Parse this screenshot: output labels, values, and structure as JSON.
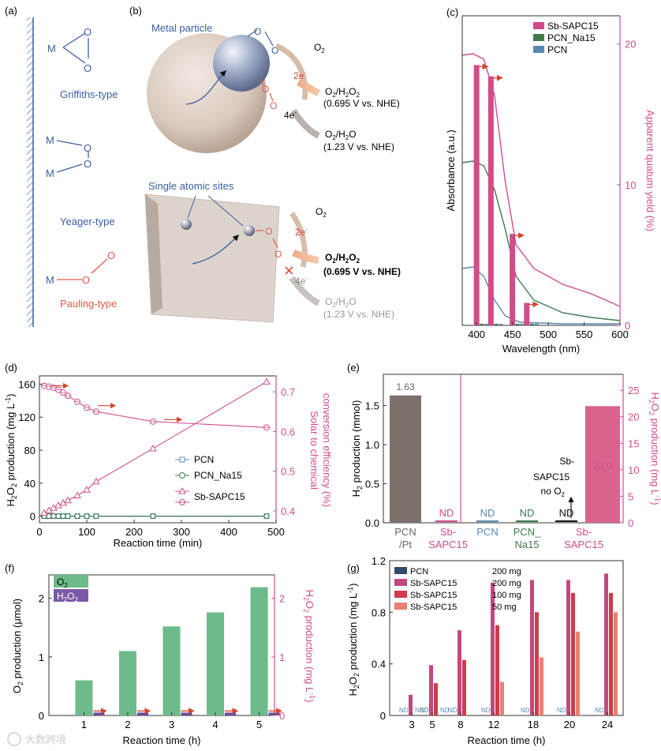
{
  "panel_labels": {
    "a": "(a)",
    "b": "(b)",
    "c": "(c)",
    "d": "(d)",
    "e": "(e)",
    "f": "(f)",
    "g": "(g)"
  },
  "panel_a": {
    "m_label": "M",
    "o_label": "O",
    "types": [
      "Griffiths-type",
      "Yeager-type",
      "Pauling-type"
    ]
  },
  "panel_b": {
    "metal_particle": "Metal particle",
    "single_sites": "Single atomic sites",
    "o2": "O",
    "two_e": "2e",
    "four_e": "4e",
    "o2h2o2": "O/HO",
    "v1": "(0.695 V vs. NHE)",
    "o2h2o": "O/HO",
    "v2": "(1.23 V vs. NHE)"
  },
  "panel_c": {
    "ylabel_left": "Absorbance (a.u.)",
    "ylabel_right": "Apparent quatum yield (%)",
    "xlabel": "Wavelength (nm)",
    "x_ticks": [
      "400",
      "450",
      "500",
      "550",
      "600"
    ],
    "y_right_ticks": [
      "0",
      "10",
      "20"
    ],
    "legend": [
      "Sb-SAPC15",
      "PCN_Na15",
      "PCN"
    ],
    "colors": [
      "#d14d8a",
      "#3f7a4d",
      "#5a87b0"
    ]
  },
  "panel_d": {
    "ylabel_left": "HO production (mg L)",
    "ylabel_right_1": "Solar to chemical",
    "ylabel_right_2": "conversion efficiency (%)",
    "xlabel": "Reaction time (min)",
    "x_ticks": [
      "0",
      "100",
      "200",
      "300",
      "400",
      "500"
    ],
    "y_left_ticks": [
      "0",
      "40",
      "80",
      "120",
      "160"
    ],
    "y_right_ticks": [
      "0.4",
      "0.5",
      "0.6",
      "0.7"
    ],
    "legend": [
      "PCN",
      "PCN_Na15",
      "Sb-SAPC15"
    ]
  },
  "panel_e": {
    "ylabel_left": "H production (mmol)",
    "ylabel_right": "HO production (mg L)",
    "y_left_ticks": [
      "0.0",
      "0.5",
      "1.0",
      "1.5"
    ],
    "y_right_ticks": [
      "0",
      "5",
      "10",
      "15",
      "20",
      "25"
    ],
    "value_1": "1.63",
    "value_2": "22.0",
    "nd": "ND",
    "note_1": "Sb-",
    "note_2": "SAPC15",
    "note_3": "no O",
    "categories": [
      "PCN\n/Pt",
      "Sb-\nSAPC15",
      "PCN",
      "PCN_\nNa15",
      "Sb-\nSAPC15"
    ],
    "cat_line1": [
      "PCN",
      "Sb-",
      "PCN",
      "PCN_",
      "Sb-"
    ],
    "cat_line2": [
      "/Pt",
      "SAPC15",
      "",
      "Na15",
      "SAPC15"
    ]
  },
  "panel_f": {
    "ylabel_left": "O production (μmol)",
    "ylabel_right": "HO production (mg L)",
    "xlabel": "Reaction time (h)",
    "x_ticks": [
      "1",
      "2",
      "3",
      "4",
      "5"
    ],
    "y_left_ticks": [
      "0",
      "1",
      "2"
    ],
    "y_right_ticks": [
      "0",
      "1",
      "2"
    ],
    "legend": [
      "O",
      "HO"
    ]
  },
  "panel_g": {
    "ylabel": "HO production (mg L)",
    "xlabel": "Reaction time (h)",
    "x_ticks": [
      "3",
      "5",
      "8",
      "12",
      "18",
      "20",
      "24"
    ],
    "y_ticks": [
      "0",
      "0.4",
      "0.8",
      "1.2"
    ],
    "legend": [
      {
        "name": "PCN",
        "mass": "200 mg"
      },
      {
        "name": "Sb-SAPC15",
        "mass": "200 mg"
      },
      {
        "name": "Sb-SAPC15",
        "mass": "100 mg"
      },
      {
        "name": "Sb-SAPC15",
        "mass": "50 mg"
      }
    ],
    "nd": "ND"
  },
  "watermark": "大数跨境",
  "chart_data": [
    {
      "type": "bar",
      "panel": "c",
      "xlabel": "Wavelength (nm)",
      "ylabel": "Apparent quatum yield (%)",
      "x": [
        400,
        420,
        450,
        470
      ],
      "values": [
        18.5,
        17.7,
        6.5,
        1.6
      ],
      "xlim": [
        380,
        600
      ],
      "ylim": [
        0,
        22
      ]
    },
    {
      "type": "line",
      "panel": "d",
      "xlabel": "Reaction time (min)",
      "ylabel": "HO production (mg L)",
      "x": [
        10,
        20,
        30,
        40,
        50,
        60,
        80,
        100,
        120,
        240,
        480
      ],
      "series": [
        {
          "name": "PCN",
          "values": [
            0,
            0,
            0,
            0,
            0,
            0,
            0,
            0,
            0,
            0,
            0
          ]
        },
        {
          "name": "PCN_Na15",
          "values": [
            0,
            0,
            0,
            0,
            0,
            0,
            0,
            0,
            0,
            0,
            0
          ]
        },
        {
          "name": "Sb-SAPC15",
          "values": [
            4,
            7,
            10,
            13,
            16,
            19,
            25,
            32,
            42,
            82,
            163
          ]
        }
      ],
      "sce_x": [
        10,
        20,
        30,
        40,
        50,
        60,
        80,
        100,
        120,
        240,
        480
      ],
      "sce_values": [
        0.715,
        0.713,
        0.71,
        0.705,
        0.698,
        0.69,
        0.675,
        0.66,
        0.65,
        0.625,
        0.61
      ],
      "xlim": [
        0,
        500
      ],
      "ylim": [
        -8,
        170
      ]
    },
    {
      "type": "bar",
      "panel": "e",
      "categories": [
        "PCN/Pt",
        "Sb-SAPC15",
        "PCN",
        "PCN_Na15",
        "Sb-SAPC15"
      ],
      "h2_values": [
        1.63,
        0,
        0,
        0,
        0
      ],
      "h2o2_values": [
        0,
        0,
        0,
        0,
        22.0
      ]
    },
    {
      "type": "bar",
      "panel": "f",
      "xlabel": "Reaction time (h)",
      "categories": [
        "1",
        "2",
        "3",
        "4",
        "5"
      ],
      "series": [
        {
          "name": "O",
          "values": [
            0.6,
            1.1,
            1.52,
            1.76,
            2.19
          ]
        },
        {
          "name": "HO",
          "values": [
            0.05,
            0.05,
            0.05,
            0.05,
            0.05
          ]
        }
      ],
      "ylim": [
        0,
        2.4
      ]
    },
    {
      "type": "bar",
      "panel": "g",
      "xlabel": "Reaction time (h)",
      "categories": [
        "3",
        "5",
        "8",
        "12",
        "18",
        "20",
        "24"
      ],
      "series": [
        {
          "name": "PCN 200 mg",
          "values": [
            0,
            0,
            0,
            0,
            0,
            0,
            0
          ]
        },
        {
          "name": "Sb-SAPC15 200 mg",
          "values": [
            0.16,
            0.39,
            0.66,
            1.03,
            1.05,
            1.05,
            1.1
          ]
        },
        {
          "name": "Sb-SAPC15 100 mg",
          "values": [
            0,
            0.25,
            0.43,
            0.7,
            0.8,
            0.95,
            0.95
          ]
        },
        {
          "name": "Sb-SAPC15 50 mg",
          "values": [
            0,
            0,
            0,
            0.26,
            0.45,
            0.65,
            0.8
          ]
        }
      ],
      "ylim": [
        0,
        1.2
      ]
    }
  ]
}
